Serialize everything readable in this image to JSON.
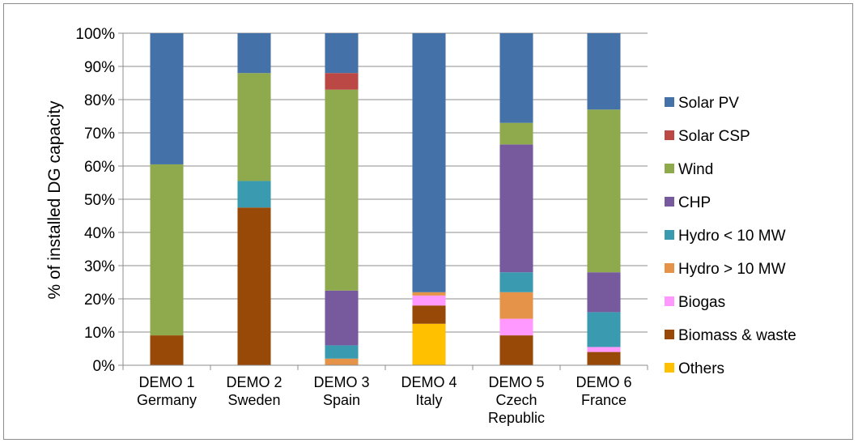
{
  "chart_data": {
    "type": "bar",
    "stacked": true,
    "normalized": true,
    "title": "",
    "xlabel": "",
    "ylabel": "% of installed DG capacity",
    "ylim": [
      0,
      100
    ],
    "yticks": [
      "0%",
      "10%",
      "20%",
      "30%",
      "40%",
      "50%",
      "60%",
      "70%",
      "80%",
      "90%",
      "100%"
    ],
    "categories": [
      [
        "DEMO 1",
        "Germany"
      ],
      [
        "DEMO 2",
        "Sweden"
      ],
      [
        "DEMO 3",
        "Spain"
      ],
      [
        "DEMO 4",
        "Italy"
      ],
      [
        "DEMO 5",
        "Czech",
        "Republic"
      ],
      [
        "DEMO 6",
        "France"
      ]
    ],
    "legend_position": "right",
    "series": [
      {
        "name": "Others",
        "color": "#ffc000",
        "values": [
          0,
          0,
          0,
          12.5,
          0,
          0
        ]
      },
      {
        "name": "Biomass & waste",
        "color": "#984807",
        "values": [
          9,
          47.5,
          0,
          5.5,
          9,
          4
        ]
      },
      {
        "name": "Biogas",
        "color": "#ff99ff",
        "values": [
          0,
          0,
          0,
          3,
          5,
          1.5
        ]
      },
      {
        "name": "Hydro > 10 MW",
        "color": "#e59349",
        "values": [
          0,
          0,
          2,
          1,
          8,
          0
        ]
      },
      {
        "name": "Hydro < 10 MW",
        "color": "#3a9ab0",
        "values": [
          0,
          8,
          4,
          0,
          6,
          10.5
        ]
      },
      {
        "name": "CHP",
        "color": "#775a9e",
        "values": [
          0,
          0,
          16.5,
          0,
          38.5,
          12
        ]
      },
      {
        "name": "Wind",
        "color": "#8eaa4c",
        "values": [
          51.5,
          32.5,
          60.5,
          0,
          6.5,
          49
        ]
      },
      {
        "name": "Solar CSP",
        "color": "#bb4844",
        "values": [
          0,
          0,
          5,
          0,
          0,
          0
        ]
      },
      {
        "name": "Solar PV",
        "color": "#4472a8",
        "values": [
          39.5,
          12,
          12,
          78,
          27,
          23
        ]
      }
    ],
    "legend_order": [
      "Solar PV",
      "Solar CSP",
      "Wind",
      "CHP",
      "Hydro < 10 MW",
      "Hydro > 10 MW",
      "Biogas",
      "Biomass & waste",
      "Others"
    ]
  }
}
